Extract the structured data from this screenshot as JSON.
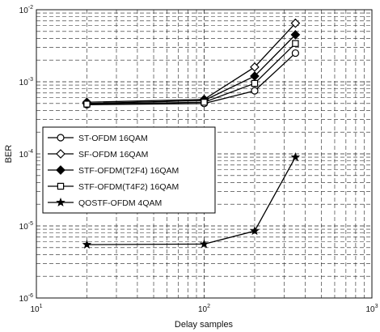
{
  "chart_data": {
    "type": "line",
    "title": "",
    "xlabel": "Delay samples",
    "ylabel": "BER",
    "xscale": "log",
    "yscale": "log",
    "xlim": [
      10,
      1000
    ],
    "ylim": [
      1e-06,
      0.01
    ],
    "x_ticks": [
      {
        "value": 10,
        "base": "10",
        "exp": "1"
      },
      {
        "value": 100,
        "base": "10",
        "exp": "2"
      },
      {
        "value": 1000,
        "base": "10",
        "exp": "3"
      }
    ],
    "y_ticks": [
      {
        "value": 1e-06,
        "base": "10",
        "exp": "-6"
      },
      {
        "value": 1e-05,
        "base": "10",
        "exp": "-5"
      },
      {
        "value": 0.0001,
        "base": "10",
        "exp": "-4"
      },
      {
        "value": 0.001,
        "base": "10",
        "exp": "-3"
      },
      {
        "value": 0.01,
        "base": "10",
        "exp": "-2"
      }
    ],
    "grid": true,
    "legend_position": "center-left",
    "x": [
      20,
      100,
      200,
      350
    ],
    "series": [
      {
        "name": "ST-OFDM 16QAM",
        "marker": "circle",
        "values": [
          0.00048,
          0.0005,
          0.00075,
          0.0025
        ]
      },
      {
        "name": "SF-OFDM 16QAM",
        "marker": "diamond",
        "values": [
          0.00052,
          0.00057,
          0.0016,
          0.0065
        ]
      },
      {
        "name": "STF-OFDM(T2F4) 16QAM",
        "marker": "filled-diamond",
        "values": [
          0.0005,
          0.00055,
          0.0012,
          0.0045
        ]
      },
      {
        "name": "STF-OFDM(T4F2) 16QAM",
        "marker": "square",
        "values": [
          0.00049,
          0.00052,
          0.00095,
          0.0034
        ]
      },
      {
        "name": "QOSTF-OFDM 4QAM",
        "marker": "star",
        "values": [
          5.5e-06,
          5.6e-06,
          8.5e-06,
          9e-05
        ]
      }
    ]
  }
}
